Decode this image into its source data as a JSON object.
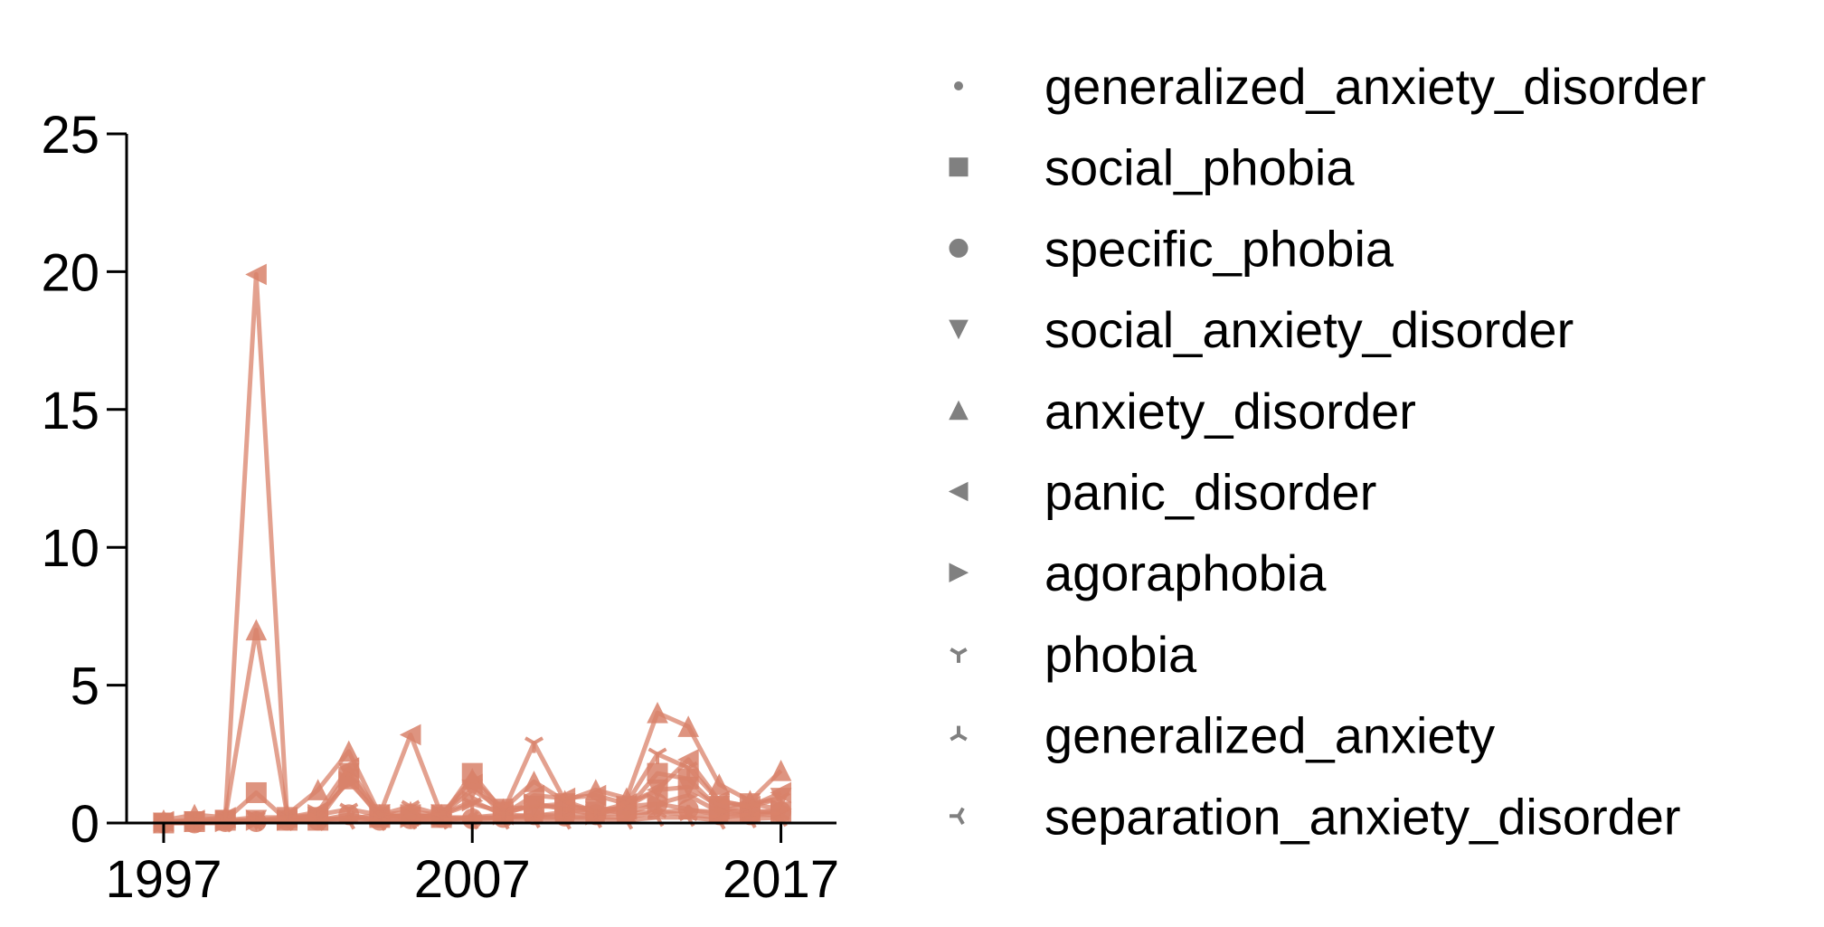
{
  "chart_data": {
    "type": "line",
    "title": "",
    "xlabel": "",
    "ylabel": "",
    "xlim": [
      1995.8,
      2018.8
    ],
    "ylim": [
      0,
      25
    ],
    "x_ticks": [
      "1997",
      "2007",
      "2017"
    ],
    "y_ticks": [
      "0",
      "5",
      "10",
      "15",
      "20",
      "25"
    ],
    "grid": false,
    "legend_position": "right",
    "x": [
      1997,
      1998,
      1999,
      2000,
      2001,
      2002,
      2003,
      2004,
      2005,
      2006,
      2007,
      2008,
      2009,
      2010,
      2011,
      2012,
      2013,
      2014,
      2015,
      2016,
      2017
    ],
    "series": [
      {
        "name": "generalized_anxiety_disorder",
        "marker": "small-circle",
        "values": [
          0,
          0.1,
          0.05,
          0.1,
          0.1,
          0.15,
          0.15,
          0.3,
          0.2,
          0.2,
          0.2,
          0.3,
          0.25,
          0.4,
          0.5,
          0.35,
          0.4,
          0.45,
          0.4,
          0.4,
          0.45
        ]
      },
      {
        "name": "social_phobia",
        "marker": "square",
        "values": [
          0,
          0.05,
          0.1,
          1.1,
          0.1,
          0.1,
          1.6,
          0.2,
          0.3,
          0.2,
          1.8,
          0.4,
          0.6,
          0.6,
          0.5,
          0.5,
          1.8,
          1.6,
          0.5,
          0.4,
          0.4
        ]
      },
      {
        "name": "specific_phobia",
        "marker": "circle",
        "values": [
          0,
          0,
          0.05,
          0.05,
          0.1,
          0.1,
          0.3,
          0.1,
          0.15,
          0.2,
          0.15,
          0.2,
          0.3,
          0.25,
          0.3,
          0.35,
          0.7,
          0.5,
          0.3,
          0.3,
          0.4
        ]
      },
      {
        "name": "social_anxiety_disorder",
        "marker": "triangle-down",
        "values": [
          0,
          0.05,
          0.1,
          0.1,
          0.2,
          0.2,
          1.8,
          0.3,
          0.2,
          0.3,
          1.2,
          0.5,
          0.6,
          0.7,
          0.4,
          0.6,
          1.2,
          1.3,
          0.6,
          0.7,
          0.9
        ]
      },
      {
        "name": "anxiety_disorder",
        "marker": "triangle-up",
        "values": [
          0.1,
          0.3,
          0.2,
          7.0,
          0.3,
          1.2,
          2.6,
          0.3,
          0.4,
          0.3,
          1.6,
          0.5,
          1.5,
          0.8,
          1.2,
          0.9,
          4.0,
          3.5,
          1.4,
          0.8,
          1.9
        ]
      },
      {
        "name": "panic_disorder",
        "marker": "triangle-left",
        "values": [
          0.05,
          0.1,
          0.2,
          19.9,
          0.2,
          0.4,
          2.0,
          0.3,
          3.2,
          0.3,
          1.4,
          0.3,
          1.0,
          0.9,
          1.0,
          0.7,
          1.2,
          2.3,
          0.8,
          0.6,
          1.1
        ]
      },
      {
        "name": "agoraphobia",
        "marker": "triangle-right",
        "values": [
          0,
          0.05,
          0.05,
          0.1,
          0.1,
          0.3,
          1.5,
          0.3,
          0.2,
          0.3,
          0.8,
          0.3,
          0.7,
          0.5,
          0.3,
          0.6,
          0.7,
          1.0,
          0.4,
          0.7,
          0.5
        ]
      },
      {
        "name": "phobia",
        "marker": "tri-down",
        "values": [
          0,
          0.1,
          0.1,
          0.2,
          0.2,
          0.3,
          0.5,
          0.3,
          0.6,
          0.3,
          0.7,
          0.4,
          2.9,
          0.8,
          0.4,
          0.7,
          2.5,
          2.0,
          0.8,
          0.6,
          0.9
        ]
      },
      {
        "name": "generalized_anxiety",
        "marker": "tri-up",
        "values": [
          0,
          0,
          0.05,
          0.05,
          0.05,
          0.1,
          0.2,
          0.1,
          0.1,
          0.1,
          0.2,
          0.2,
          0.2,
          0.2,
          0.2,
          0.2,
          0.4,
          0.3,
          0.2,
          0.3,
          0.3
        ]
      },
      {
        "name": "separation_anxiety_disorder",
        "marker": "tri-left",
        "values": [
          0,
          0,
          0,
          0.05,
          0.05,
          0.05,
          0.1,
          0.05,
          0.1,
          0.1,
          0.1,
          0.1,
          0.15,
          0.1,
          0.15,
          0.1,
          0.2,
          0.2,
          0.1,
          0.15,
          0.2
        ]
      }
    ],
    "colors": {
      "series_line": "#d9826a",
      "legend_marker": "#808080",
      "axis": "#000000"
    }
  }
}
